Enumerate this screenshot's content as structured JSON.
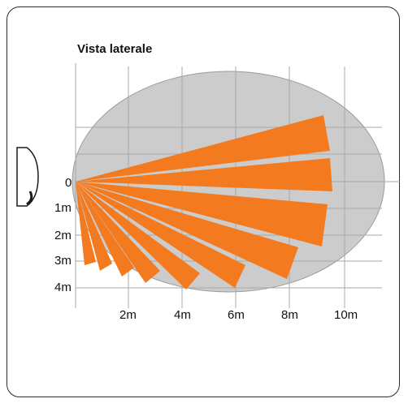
{
  "title": "Vista laterale",
  "y_labels": [
    "0",
    "1m",
    "2m",
    "3m",
    "4m"
  ],
  "x_labels": [
    "2m",
    "4m",
    "6m",
    "8m",
    "10m"
  ],
  "colors": {
    "beam": "#f47a1f",
    "coverage": "#cccccc",
    "grid": "#a8a8a8",
    "frame": "#2b2b2b"
  },
  "sensor_icon": "pir-sensor-side-icon"
}
